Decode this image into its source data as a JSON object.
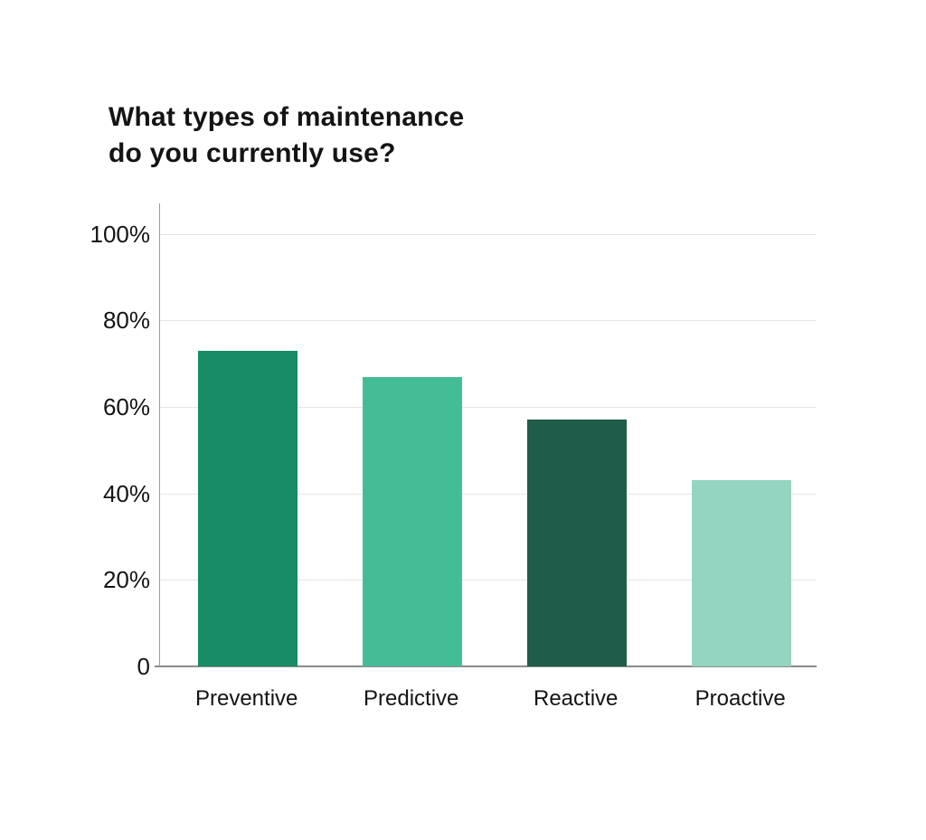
{
  "page": {
    "background_color": "#ffffff",
    "title": "What types of maintenance\ndo you currently use?",
    "title_color": "#141414"
  },
  "chart_data": {
    "type": "bar",
    "title": "What types of maintenance do you currently use?",
    "categories": [
      "Preventive",
      "Predictive",
      "Reactive",
      "Proactive"
    ],
    "values": [
      73,
      67,
      57,
      43
    ],
    "unit": "%",
    "bar_colors": [
      "#178a66",
      "#45bc98",
      "#1f5c4a",
      "#93d5c1"
    ],
    "xlabel": "",
    "ylabel": "",
    "ylim": [
      0,
      100
    ],
    "yticks": [
      {
        "value": 100,
        "label": "100%"
      },
      {
        "value": 80,
        "label": "80%"
      },
      {
        "value": 60,
        "label": "60%"
      },
      {
        "value": 40,
        "label": "40%"
      },
      {
        "value": 20,
        "label": "20%"
      },
      {
        "value": 0,
        "label": "0"
      }
    ],
    "grid": "horizontal-light",
    "legend": "none",
    "axis_color": "#9b9b9b",
    "gridline_color": "#e6e6e6",
    "baseline_color": "#8a8a8a",
    "label_color": "#141414"
  }
}
